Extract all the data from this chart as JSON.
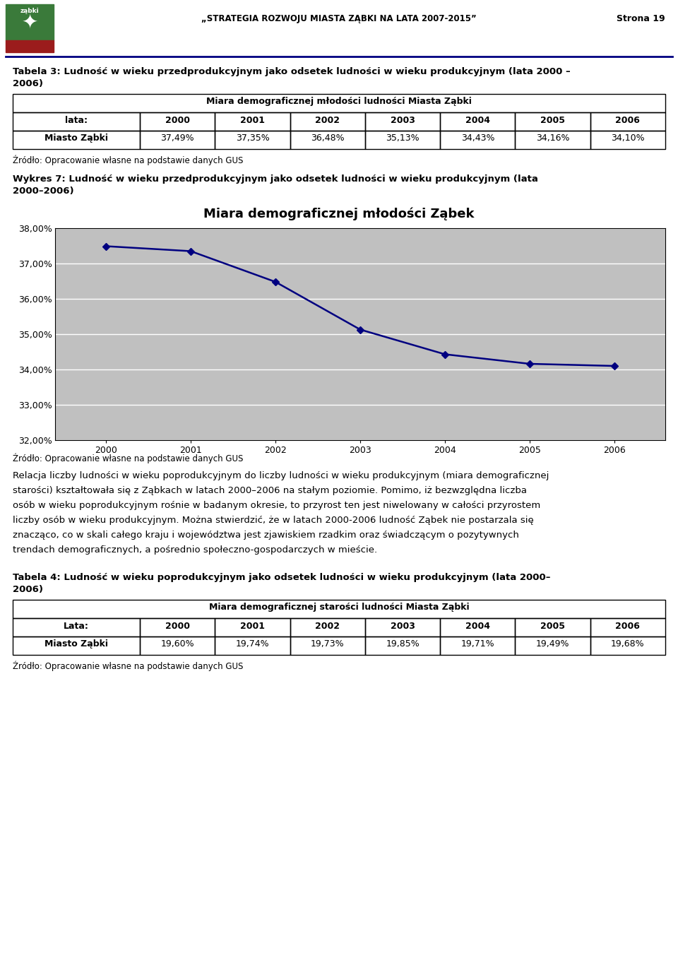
{
  "page_title": "„STRATEGIA ROZWOJU MIASTA ZĄBKI NA LATA 2007-2015”",
  "page_number": "Strona 19",
  "table1_title_line1": "Tabela 3: Ludność w wieku przedprodukcyjnym jako odsetek ludności w wieku produkcyjnym (lata 2000 –",
  "table1_title_line2": "2006)",
  "table1_header": "Miara demograficznej młodości ludności Miasta Ząbki",
  "table1_col_label": "lata:",
  "table1_years": [
    "2000",
    "2001",
    "2002",
    "2003",
    "2004",
    "2005",
    "2006"
  ],
  "table1_values": [
    "37,49%",
    "37,35%",
    "36,48%",
    "35,13%",
    "34,43%",
    "34,16%",
    "34,10%"
  ],
  "source1": "Źródło: Opracowanie własne na podstawie danych GUS",
  "wykres_label_line1": "Wykres 7: Ludność w wieku przedprodukcyjnym jako odsetek ludności w wieku produkcyjnym (lata",
  "wykres_label_line2": "2000–2006)",
  "chart_title": "Miara demograficznej młodości Ząbek",
  "chart_years": [
    2000,
    2001,
    2002,
    2003,
    2004,
    2005,
    2006
  ],
  "chart_values": [
    37.49,
    37.35,
    36.48,
    35.13,
    34.43,
    34.16,
    34.1
  ],
  "chart_ylim": [
    32.0,
    38.0
  ],
  "chart_yticks": [
    32.0,
    33.0,
    34.0,
    35.0,
    36.0,
    37.0,
    38.0
  ],
  "chart_bg_color": "#C0C0C0",
  "chart_line_color": "#000080",
  "chart_marker": "D",
  "source2": "Źródło: Opracowanie własne na podstawie danych GUS",
  "body_lines": [
    "Relacja liczby ludności w wieku poprodukcyjnym do liczby ludności w wieku produkcyjnym (miara demograficznej",
    "starości) kształtowała się z Ząbkach w latach 2000–2006 na stałym poziomie. Pomimo, iż bezwzględna liczba",
    "osób w wieku poprodukcyjnym rośnie w badanym okresie, to przyrost ten jest niwelowany w całości przyrostem",
    "liczby osób w wieku produkcyjnym. Można stwierdzić, że w latach 2000-2006 ludność Ząbek nie postarzala się",
    "znacząco, co w skali całego kraju i województwa jest zjawiskiem rzadkim oraz świadczącym o pozytywnych",
    "trendach demograficznych, a pośrednio społeczno-gospodarczych w mieście."
  ],
  "table2_title_line1": "Tabela 4: Ludność w wieku poprodukcyjnym jako odsetek ludności w wieku produkcyjnym (lata 2000–",
  "table2_title_line2": "2006)",
  "table2_header": "Miara demograficznej starości ludności Miasta Ząbki",
  "table2_col_label": "Lata:",
  "table2_years": [
    "2000",
    "2001",
    "2002",
    "2003",
    "2004",
    "2005",
    "2006"
  ],
  "table2_values": [
    "19,60%",
    "19,74%",
    "19,73%",
    "19,85%",
    "19,71%",
    "19,49%",
    "19,68%"
  ],
  "source3": "Źródło: Opracowanie własne na podstawie danych GUS",
  "header_line_color": "#000080",
  "page_bg": "#FFFFFF",
  "logo_green": "#2E6B2E",
  "logo_red": "#8B1A1A",
  "logo_text_color": "#FFFFFF"
}
